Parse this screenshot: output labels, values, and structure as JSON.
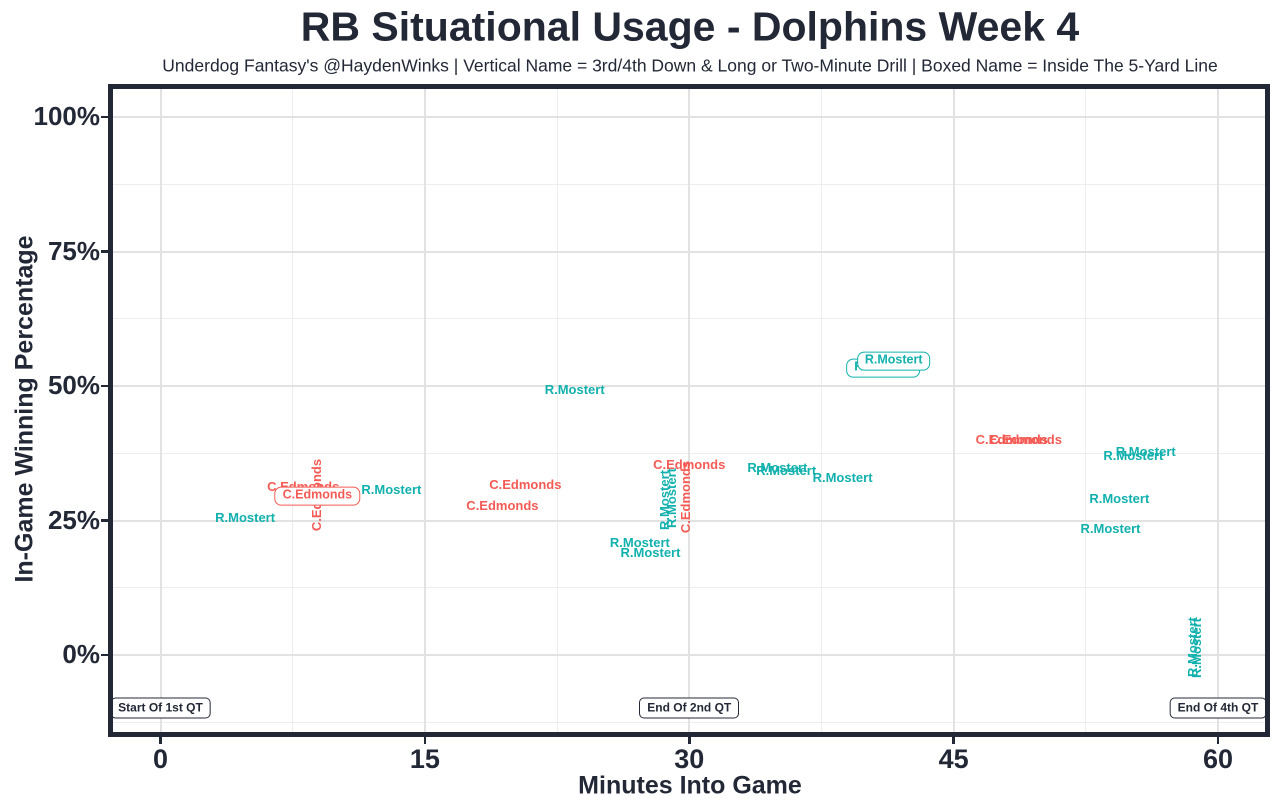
{
  "header": {
    "title": "RB Situational Usage - Dolphins Week 4",
    "subtitle": "Underdog Fantasy's @HaydenWinks | Vertical Name = 3rd/4th Down & Long or Two-Minute Drill | Boxed Name = Inside The 5-Yard Line"
  },
  "colors": {
    "teal": "#12b1ae",
    "red": "#f45b55",
    "dark": "#232836",
    "grid_major": "#e2e2e2",
    "grid_minor": "#ededed",
    "panel_bg": "#ffffff"
  },
  "chart_data": {
    "type": "scatter",
    "title": "RB Situational Usage - Dolphins Week 4",
    "subtitle": "Underdog Fantasy's @HaydenWinks | Vertical Name = 3rd/4th Down & Long or Two-Minute Drill | Boxed Name = Inside The 5-Yard Line",
    "xlabel": "Minutes Into Game",
    "ylabel": "In-Game Winning Percentage",
    "x_ticks": [
      0,
      15,
      30,
      45,
      60
    ],
    "x_tick_labels": [
      "0",
      "15",
      "30",
      "45",
      "60"
    ],
    "y_ticks": [
      0,
      25,
      50,
      75,
      100
    ],
    "y_tick_labels": [
      "0%",
      "25%",
      "50%",
      "75%",
      "100%"
    ],
    "x_minor": [
      7.5,
      22.5,
      37.5,
      52.5
    ],
    "y_minor": [
      -12.5,
      12.5,
      37.5,
      62.5,
      87.5
    ],
    "xlim": [
      -2.8,
      62.8
    ],
    "ylim": [
      -14.9,
      105.6
    ],
    "grid": true,
    "legend": "none",
    "label_styles_legend": {
      "horizontal": "normal down",
      "vertical": "3rd/4th Down & Long or Two-Minute Drill",
      "boxed": "Inside The 5-Yard Line"
    },
    "series": [
      {
        "name": "R.Mostert",
        "color": "teal",
        "points": [
          {
            "minutes": 4.8,
            "win_pct": 25.5,
            "style": "horizontal"
          },
          {
            "minutes": 13.1,
            "win_pct": 30.7,
            "style": "horizontal"
          },
          {
            "minutes": 23.5,
            "win_pct": 49.3,
            "style": "horizontal"
          },
          {
            "minutes": 27.2,
            "win_pct": 20.8,
            "style": "horizontal"
          },
          {
            "minutes": 27.8,
            "win_pct": 19.0,
            "style": "horizontal"
          },
          {
            "minutes": 28.6,
            "win_pct": 28.8,
            "style": "vertical"
          },
          {
            "minutes": 29.0,
            "win_pct": 29.2,
            "style": "vertical"
          },
          {
            "minutes": 35.0,
            "win_pct": 34.8,
            "style": "horizontal"
          },
          {
            "minutes": 35.5,
            "win_pct": 34.2,
            "style": "horizontal"
          },
          {
            "minutes": 38.7,
            "win_pct": 32.9,
            "style": "horizontal"
          },
          {
            "minutes": 41.0,
            "win_pct": 53.3,
            "style": "boxed"
          },
          {
            "minutes": 41.6,
            "win_pct": 54.6,
            "style": "boxed"
          },
          {
            "minutes": 55.2,
            "win_pct": 37.0,
            "style": "horizontal"
          },
          {
            "minutes": 55.9,
            "win_pct": 37.7,
            "style": "horizontal"
          },
          {
            "minutes": 54.4,
            "win_pct": 29.0,
            "style": "horizontal"
          },
          {
            "minutes": 53.9,
            "win_pct": 23.4,
            "style": "horizontal"
          },
          {
            "minutes": 58.6,
            "win_pct": 1.5,
            "style": "vertical"
          },
          {
            "minutes": 58.8,
            "win_pct": 1.3,
            "style": "vertical"
          }
        ]
      },
      {
        "name": "C.Edmonds",
        "color": "red",
        "points": [
          {
            "minutes": 8.1,
            "win_pct": 31.2,
            "style": "horizontal"
          },
          {
            "minutes": 8.9,
            "win_pct": 29.7,
            "style": "vertical"
          },
          {
            "minutes": 8.9,
            "win_pct": 29.6,
            "style": "boxed"
          },
          {
            "minutes": 19.4,
            "win_pct": 27.7,
            "style": "horizontal"
          },
          {
            "minutes": 20.7,
            "win_pct": 31.6,
            "style": "horizontal"
          },
          {
            "minutes": 30.0,
            "win_pct": 35.3,
            "style": "horizontal"
          },
          {
            "minutes": 29.8,
            "win_pct": 29.4,
            "style": "vertical"
          },
          {
            "minutes": 48.3,
            "win_pct": 40.0,
            "style": "horizontal"
          },
          {
            "minutes": 49.1,
            "win_pct": 40.0,
            "style": "horizontal"
          }
        ]
      }
    ],
    "annotations": [
      {
        "label": "Start Of 1st QT",
        "minutes": 0,
        "win_pct": -9.8
      },
      {
        "label": "End Of 2nd QT",
        "minutes": 30,
        "win_pct": -9.8
      },
      {
        "label": "End Of 4th QT",
        "minutes": 60,
        "win_pct": -9.8
      }
    ]
  }
}
